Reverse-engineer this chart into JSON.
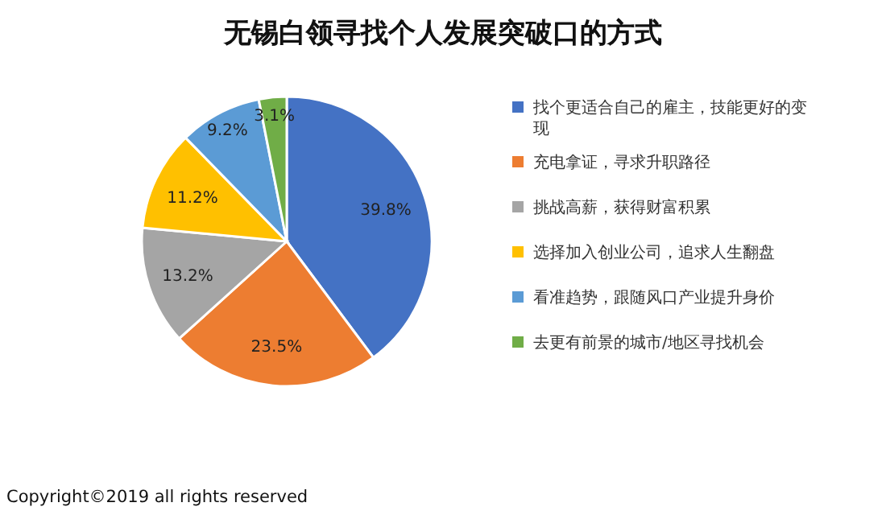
{
  "chart_data": {
    "type": "pie",
    "title": "无锡白领寻找个人发展突破口的方式",
    "categories": [
      "找个更适合自己的雇主，技能更好的变现",
      "充电拿证，寻求升职路径",
      "挑战高薪，获得财富积累",
      "选择加入创业公司，追求人生翻盘",
      "看准趋势，跟随风口产业提升身价",
      "去更有前景的城市/地区寻找机会"
    ],
    "values": [
      39.8,
      23.5,
      13.2,
      11.2,
      9.2,
      3.1
    ],
    "colors": [
      "#4472c4",
      "#ed7d31",
      "#a5a5a5",
      "#ffc000",
      "#5b9bd5",
      "#70ad47"
    ],
    "value_labels": [
      "39.8%",
      "23.5%",
      "13.2%",
      "11.2%",
      "9.2%",
      "3.1%"
    ],
    "legend": "right",
    "annotations": [
      "Copyright©2019 all rights reserved"
    ]
  }
}
